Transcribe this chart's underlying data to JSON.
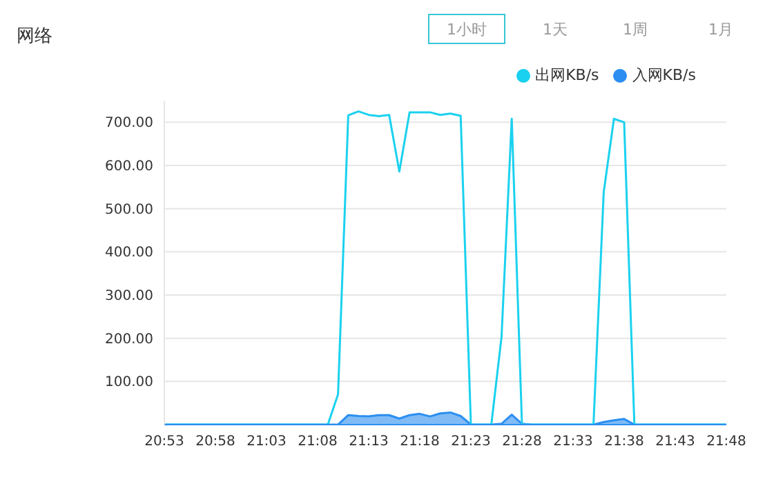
{
  "chart_data": {
    "type": "line",
    "title": "网络",
    "annotations": [
      "1小时",
      "1天",
      "1周",
      "1月"
    ],
    "categories": [
      "20:53",
      null,
      null,
      null,
      null,
      "20:58",
      null,
      null,
      null,
      null,
      "21:03",
      null,
      null,
      null,
      null,
      "21:08",
      null,
      null,
      null,
      null,
      "21:13",
      null,
      null,
      null,
      null,
      "21:18",
      null,
      null,
      null,
      null,
      "21:23",
      null,
      null,
      null,
      null,
      "21:28",
      null,
      null,
      null,
      null,
      "21:33",
      null,
      null,
      null,
      null,
      "21:38",
      null,
      null,
      null,
      null,
      "21:43",
      null,
      null,
      null,
      null,
      "21:48"
    ],
    "series": [
      {
        "name": "出网KB/s",
        "color": "#1ad1ef",
        "values": [
          0,
          0,
          0,
          0,
          0,
          0,
          0,
          0,
          0,
          0,
          0,
          0,
          0,
          0,
          0,
          0,
          0,
          70,
          716,
          725,
          717,
          714,
          717,
          586,
          723,
          723,
          723,
          717,
          720,
          715,
          0,
          0,
          0,
          203,
          708,
          0,
          0,
          0,
          0,
          0,
          0,
          0,
          0,
          538,
          708,
          700,
          0,
          0,
          0,
          0,
          0,
          0,
          0,
          0,
          0,
          0
        ]
      },
      {
        "name": "入网KB/s",
        "type": "area",
        "color": "#2b8ef0",
        "values": [
          0,
          0,
          0,
          0,
          0,
          0,
          0,
          0,
          0,
          0,
          0,
          0,
          0,
          0,
          0,
          0,
          0,
          0,
          22,
          20,
          19,
          22,
          22,
          14,
          22,
          25,
          19,
          26,
          28,
          20,
          0,
          0,
          0,
          2,
          23,
          2,
          0,
          0,
          0,
          0,
          0,
          0,
          0,
          6,
          10,
          13,
          0,
          0,
          0,
          0,
          0,
          0,
          0,
          0,
          0,
          0
        ]
      }
    ],
    "ylim": [
      0,
      750
    ],
    "yticks": [
      {
        "value": 100,
        "label": "100.00"
      },
      {
        "value": 200,
        "label": "200.00"
      },
      {
        "value": 300,
        "label": "300.00"
      },
      {
        "value": 400,
        "label": "400.00"
      },
      {
        "value": 500,
        "label": "500.00"
      },
      {
        "value": 600,
        "label": "600.00"
      },
      {
        "value": 700,
        "label": "700.00"
      }
    ],
    "grid": "y",
    "legend": "top right",
    "marker": "none",
    "line_style": "solid"
  }
}
